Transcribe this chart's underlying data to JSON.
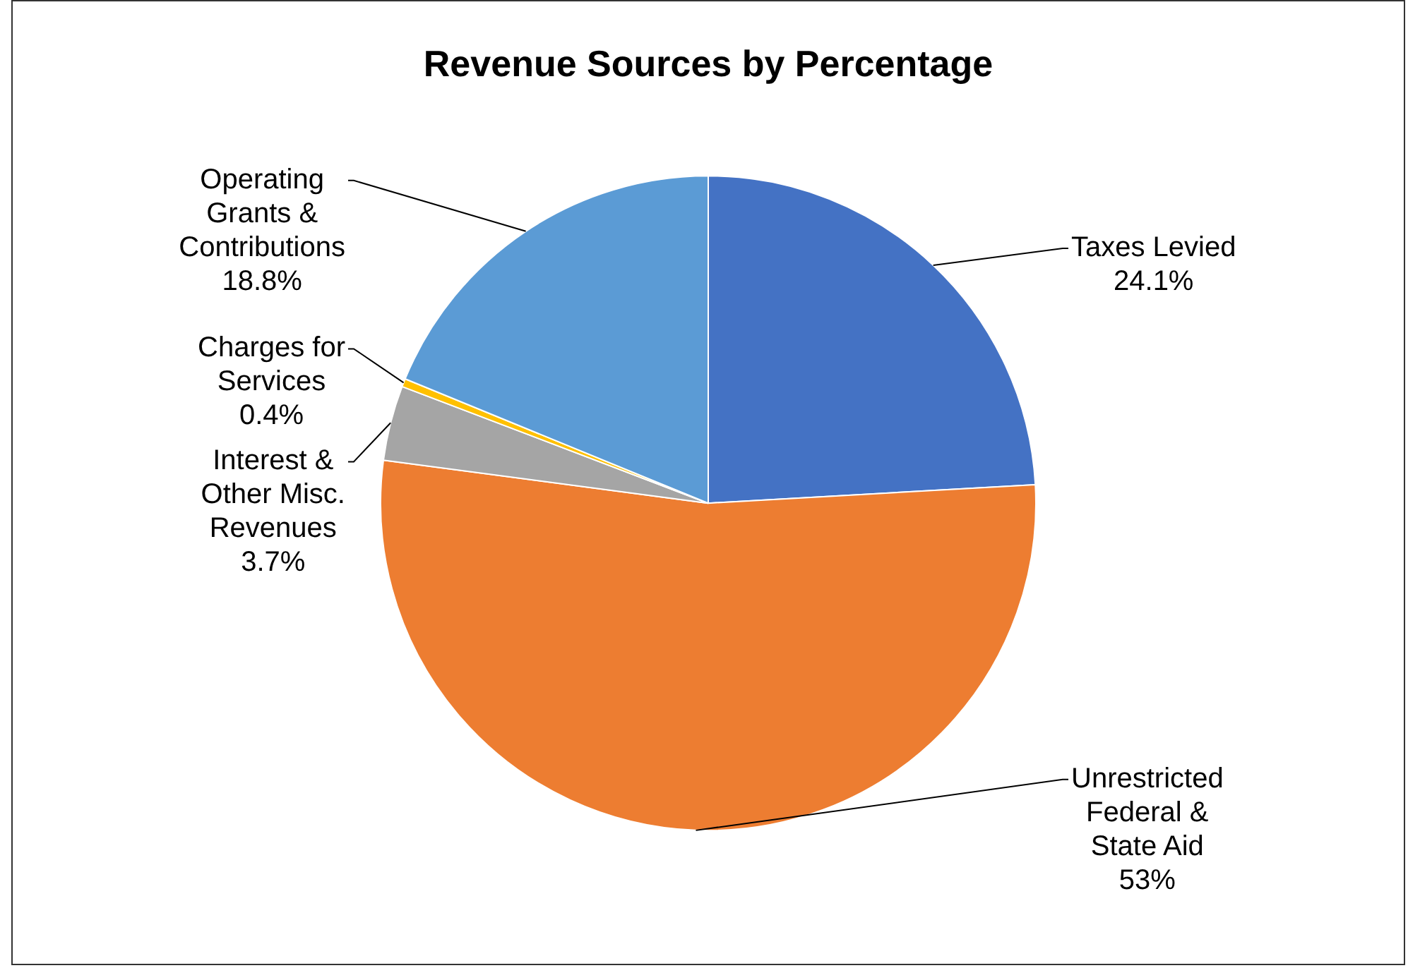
{
  "chart_data": {
    "type": "pie",
    "title": "Revenue Sources by Percentage",
    "categories": [
      "Taxes Levied",
      "Unrestricted Federal & State Aid",
      "Interest & Other Misc. Revenues",
      "Charges for Services",
      "Operating Grants & Contributions"
    ],
    "values": [
      24.1,
      53,
      3.7,
      0.4,
      18.8
    ],
    "value_labels": [
      "24.1%",
      "53%",
      "3.7%",
      "0.4%",
      "18.8%"
    ],
    "colors": [
      "#4472c4",
      "#ed7d31",
      "#a5a5a5",
      "#ffc000",
      "#5b9bd5"
    ]
  }
}
